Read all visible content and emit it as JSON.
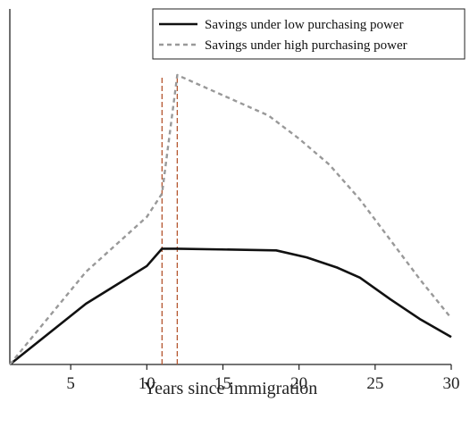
{
  "chart_data": {
    "type": "line",
    "title": "",
    "xlabel": "Years since immigration",
    "ylabel": "",
    "xlim": [
      1,
      30
    ],
    "ylim": [
      0,
      100
    ],
    "xticks": [
      5,
      10,
      15,
      20,
      25,
      30
    ],
    "grid": false,
    "legend_position": "top-right",
    "series": [
      {
        "name": "Savings under low purchasing power",
        "style": "solid",
        "color": "#111111",
        "x": [
          1,
          6,
          10,
          11,
          12,
          18.5,
          20.5,
          22.5,
          24,
          26,
          28,
          30
        ],
        "y": [
          0,
          21,
          34,
          40,
          40,
          39.4,
          37,
          33.5,
          30,
          22.5,
          15.5,
          9.5
        ]
      },
      {
        "name": "Savings under high purchasing power",
        "style": "dashed",
        "color": "#999999",
        "x": [
          1,
          6,
          10,
          11,
          12,
          15,
          18,
          20,
          22,
          24,
          26,
          28,
          30
        ],
        "y": [
          0,
          32,
          51,
          59,
          100,
          93,
          86,
          78,
          69,
          57,
          43,
          29,
          16
        ]
      }
    ],
    "vlines": [
      {
        "x": 11,
        "style": "dashed",
        "color": "#b5562f"
      },
      {
        "x": 12,
        "style": "dashed",
        "color": "#b5562f"
      }
    ]
  }
}
